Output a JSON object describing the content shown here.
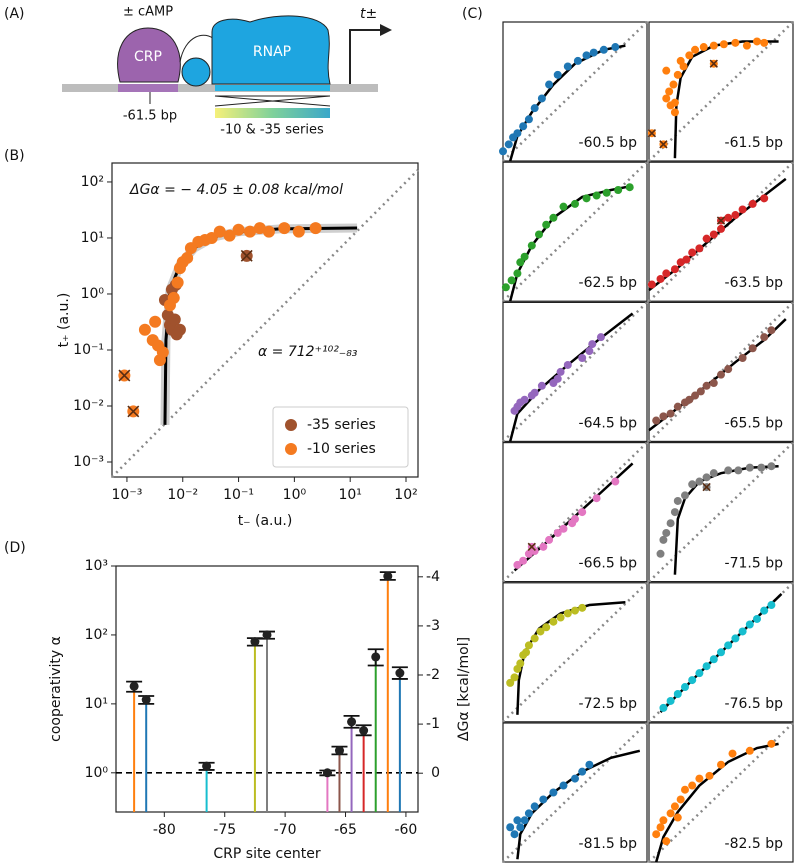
{
  "panel_labels": {
    "a": "(A)",
    "b": "(B)",
    "c": "(C)",
    "d": "(D)"
  },
  "diagram": {
    "camp": "± cAMP",
    "crp": "CRP",
    "rnap": "RNAP",
    "t": "t±",
    "site": "-61.5 bp",
    "series": "-10 & -35 series"
  },
  "chart_data": [
    {
      "type": "scatter",
      "annotations": [
        "ΔGα = − 4.05 ± 0.08 kcal/mol",
        "α = 712⁺¹⁰²₋₈₃"
      ],
      "x_label": "t₋  (a.u.)",
      "y_label": "t₊  (a.u.)",
      "log_x": true,
      "log_y": true,
      "xlim": [
        0.00054,
        164
      ],
      "ylim": [
        0.00054,
        218
      ],
      "xticks": [
        {
          "value": 0.001,
          "label": "10⁻³"
        },
        {
          "value": 0.01,
          "label": "10⁻²"
        },
        {
          "value": 0.1,
          "label": "10⁻¹"
        },
        {
          "value": 1,
          "label": "10⁰"
        },
        {
          "value": 10,
          "label": "10¹"
        },
        {
          "value": 100,
          "label": "10²"
        }
      ],
      "yticks": [
        {
          "value": 0.001,
          "label": "10⁻³"
        },
        {
          "value": 0.01,
          "label": "10⁻²"
        },
        {
          "value": 0.1,
          "label": "10⁻¹"
        },
        {
          "value": 1,
          "label": "10⁰"
        },
        {
          "value": 10,
          "label": "10¹"
        },
        {
          "value": 100,
          "label": "10²"
        }
      ],
      "legend": "lower right",
      "series": [
        {
          "name": "-35 series",
          "color": "#a0522d",
          "x": [
            0.0048,
            0.0054,
            0.0059,
            0.0064,
            0.0072,
            0.0078,
            0.0089,
            0.0064,
            0.0075,
            0.14
          ],
          "values": [
            0.78,
            0.42,
            0.28,
            0.23,
            0.35,
            0.19,
            0.23,
            1.2,
            1.45,
            4.8
          ],
          "excluded": [
            9
          ]
        },
        {
          "name": "-10 series",
          "color": "#f47a20",
          "x": [
            0.0009,
            0.0013,
            0.0021,
            0.0032,
            0.0029,
            0.0036,
            0.0039,
            0.0044,
            0.0059,
            0.0069,
            0.0081,
            0.0089,
            0.01,
            0.012,
            0.014,
            0.019,
            0.025,
            0.033,
            0.046,
            0.069,
            0.1,
            0.16,
            0.24,
            0.35,
            0.66,
            1.2,
            2.4
          ],
          "values": [
            0.035,
            0.008,
            0.23,
            0.32,
            0.15,
            0.12,
            0.066,
            0.091,
            0.63,
            0.85,
            1.6,
            2.9,
            3.7,
            4.4,
            6.6,
            8.5,
            9.2,
            10,
            13,
            11,
            14,
            13,
            15,
            13,
            15,
            13,
            15
          ],
          "excluded": [
            0,
            1
          ]
        }
      ],
      "fit": {
        "color": "#000000",
        "x": [
          0.0048,
          0.005,
          0.0059,
          0.0089,
          0.016,
          0.037,
          0.1,
          0.54,
          13.3
        ],
        "values": [
          0.0046,
          0.15,
          1.17,
          3.3,
          6.6,
          10.5,
          12.9,
          14.5,
          15.1
        ]
      }
    },
    {
      "type": "scatter",
      "annotation": "-60.5 bp",
      "xlim": [
        0,
        1
      ],
      "ylim": [
        0,
        1
      ],
      "color": "#1f77b4",
      "x": [
        0.0,
        0.04,
        0.07,
        0.1,
        0.14,
        0.18,
        0.22,
        0.27,
        0.32,
        0.38,
        0.45,
        0.52,
        0.58,
        0.63,
        0.7,
        0.78
      ],
      "values": [
        0.07,
        0.12,
        0.17,
        0.2,
        0.25,
        0.3,
        0.38,
        0.45,
        0.55,
        0.62,
        0.68,
        0.72,
        0.76,
        0.78,
        0.8,
        0.82
      ],
      "fit": {
        "x": [
          0.05,
          0.1,
          0.2,
          0.35,
          0.5,
          0.7,
          0.85
        ],
        "values": [
          0,
          0.18,
          0.35,
          0.55,
          0.7,
          0.8,
          0.83
        ]
      }
    },
    {
      "type": "scatter",
      "annotation": "-61.5 bp",
      "xlim": [
        0,
        1
      ],
      "ylim": [
        0,
        1
      ],
      "color": "#ff7f0e",
      "x": [
        0.02,
        0.1,
        0.12,
        0.14,
        0.15,
        0.17,
        0.18,
        0.2,
        0.22,
        0.24,
        0.28,
        0.32,
        0.38,
        0.45,
        0.52,
        0.6,
        0.68,
        0.75,
        0.8,
        0.12,
        0.18,
        0.45
      ],
      "values": [
        0.2,
        0.12,
        0.45,
        0.5,
        0.4,
        0.55,
        0.35,
        0.62,
        0.72,
        0.68,
        0.76,
        0.8,
        0.82,
        0.83,
        0.84,
        0.85,
        0.83,
        0.86,
        0.85,
        0.65,
        0.42,
        0.7
      ],
      "excluded": [
        0,
        1,
        21
      ],
      "fit": {
        "x": [
          0.18,
          0.19,
          0.22,
          0.3,
          0.45,
          0.65,
          0.9
        ],
        "values": [
          0.02,
          0.4,
          0.6,
          0.75,
          0.83,
          0.86,
          0.86
        ]
      }
    },
    {
      "type": "scatter",
      "annotation": "-62.5 bp",
      "xlim": [
        0,
        1
      ],
      "ylim": [
        0,
        1
      ],
      "color": "#2ca02c",
      "x": [
        0.02,
        0.06,
        0.1,
        0.12,
        0.15,
        0.2,
        0.25,
        0.3,
        0.35,
        0.42,
        0.5,
        0.58,
        0.65,
        0.72,
        0.8,
        0.88
      ],
      "values": [
        0.1,
        0.15,
        0.2,
        0.28,
        0.32,
        0.4,
        0.48,
        0.55,
        0.6,
        0.68,
        0.7,
        0.74,
        0.76,
        0.78,
        0.8,
        0.82
      ],
      "fit": {
        "x": [
          0.05,
          0.1,
          0.2,
          0.35,
          0.55,
          0.75,
          0.9
        ],
        "values": [
          0,
          0.2,
          0.4,
          0.6,
          0.75,
          0.8,
          0.83
        ]
      }
    },
    {
      "type": "scatter",
      "annotation": "-63.5 bp",
      "xlim": [
        0,
        1
      ],
      "ylim": [
        0,
        1
      ],
      "color": "#d62728",
      "x": [
        0.02,
        0.08,
        0.12,
        0.18,
        0.22,
        0.26,
        0.3,
        0.35,
        0.4,
        0.45,
        0.5,
        0.55,
        0.6,
        0.65,
        0.72,
        0.8,
        0.5
      ],
      "values": [
        0.12,
        0.16,
        0.2,
        0.23,
        0.28,
        0.3,
        0.35,
        0.38,
        0.45,
        0.48,
        0.52,
        0.6,
        0.62,
        0.66,
        0.7,
        0.74,
        0.58
      ],
      "excluded": [
        16
      ],
      "fit": {
        "x": [
          0,
          0.2,
          0.4,
          0.6,
          0.8,
          0.95
        ],
        "values": [
          0.08,
          0.24,
          0.42,
          0.6,
          0.76,
          0.88
        ]
      }
    },
    {
      "type": "scatter",
      "annotation": "-64.5 bp",
      "xlim": [
        0,
        1
      ],
      "ylim": [
        0,
        1
      ],
      "color": "#9467bd",
      "x": [
        0.08,
        0.1,
        0.12,
        0.15,
        0.2,
        0.22,
        0.27,
        0.35,
        0.38,
        0.4,
        0.45,
        0.55,
        0.6,
        0.62,
        0.68
      ],
      "values": [
        0.22,
        0.25,
        0.28,
        0.3,
        0.33,
        0.35,
        0.4,
        0.42,
        0.45,
        0.5,
        0.55,
        0.6,
        0.65,
        0.7,
        0.75
      ],
      "fit": {
        "x": [
          0.05,
          0.1,
          0.25,
          0.45,
          0.65,
          0.9
        ],
        "values": [
          0,
          0.2,
          0.37,
          0.55,
          0.72,
          0.92
        ]
      }
    },
    {
      "type": "scatter",
      "annotation": "-65.5 bp",
      "xlim": [
        0,
        1
      ],
      "ylim": [
        0,
        1
      ],
      "color": "#8c564b",
      "x": [
        0.05,
        0.1,
        0.15,
        0.2,
        0.25,
        0.28,
        0.32,
        0.36,
        0.4,
        0.45,
        0.5,
        0.55,
        0.65,
        0.72,
        0.8,
        0.85
      ],
      "values": [
        0.15,
        0.18,
        0.2,
        0.25,
        0.28,
        0.3,
        0.33,
        0.36,
        0.4,
        0.42,
        0.48,
        0.52,
        0.6,
        0.67,
        0.75,
        0.8
      ],
      "fit": {
        "x": [
          0,
          0.2,
          0.4,
          0.6,
          0.8,
          0.95
        ],
        "values": [
          0.08,
          0.24,
          0.4,
          0.57,
          0.73,
          0.88
        ]
      }
    },
    {
      "type": "scatter",
      "annotation": "-66.5 bp",
      "xlim": [
        0,
        1
      ],
      "ylim": [
        0,
        1
      ],
      "color": "#e377c2",
      "x": [
        0.1,
        0.14,
        0.18,
        0.22,
        0.28,
        0.32,
        0.38,
        0.42,
        0.48,
        0.5,
        0.55,
        0.65,
        0.78,
        0.2
      ],
      "values": [
        0.12,
        0.15,
        0.2,
        0.22,
        0.25,
        0.3,
        0.35,
        0.38,
        0.42,
        0.45,
        0.5,
        0.6,
        0.72,
        0.25
      ],
      "excluded": [
        13
      ],
      "fit": {
        "x": [
          0.08,
          0.3,
          0.5,
          0.7,
          0.9
        ],
        "values": [
          0.08,
          0.28,
          0.47,
          0.66,
          0.85
        ]
      }
    },
    {
      "type": "scatter",
      "annotation": "-71.5 bp",
      "xlim": [
        0,
        1
      ],
      "ylim": [
        0,
        1
      ],
      "color": "#7f7f7f",
      "x": [
        0.08,
        0.1,
        0.12,
        0.15,
        0.18,
        0.2,
        0.25,
        0.3,
        0.35,
        0.4,
        0.45,
        0.55,
        0.62,
        0.7,
        0.78,
        0.85,
        0.4
      ],
      "values": [
        0.2,
        0.3,
        0.35,
        0.42,
        0.5,
        0.58,
        0.62,
        0.7,
        0.72,
        0.75,
        0.78,
        0.8,
        0.8,
        0.82,
        0.82,
        0.83,
        0.68
      ],
      "excluded": [
        16
      ],
      "fit": {
        "x": [
          0.18,
          0.2,
          0.25,
          0.35,
          0.5,
          0.7,
          0.9
        ],
        "values": [
          0.05,
          0.45,
          0.6,
          0.72,
          0.78,
          0.82,
          0.83
        ]
      }
    },
    {
      "type": "scatter",
      "annotation": "-72.5 bp",
      "xlim": [
        0,
        1
      ],
      "ylim": [
        0,
        1
      ],
      "color": "#bcbd22",
      "x": [
        0.05,
        0.08,
        0.1,
        0.12,
        0.14,
        0.16,
        0.18,
        0.22,
        0.26,
        0.3,
        0.35,
        0.4,
        0.45,
        0.5,
        0.55
      ],
      "values": [
        0.28,
        0.32,
        0.38,
        0.42,
        0.48,
        0.5,
        0.55,
        0.6,
        0.65,
        0.68,
        0.72,
        0.75,
        0.78,
        0.8,
        0.82
      ],
      "fit": {
        "x": [
          0.1,
          0.11,
          0.15,
          0.25,
          0.4,
          0.6,
          0.85
        ],
        "values": [
          0.05,
          0.3,
          0.5,
          0.67,
          0.78,
          0.84,
          0.86
        ]
      }
    },
    {
      "type": "scatter",
      "annotation": "-76.5 bp",
      "xlim": [
        0,
        1
      ],
      "ylim": [
        0,
        1
      ],
      "color": "#17becf",
      "x": [
        0.1,
        0.15,
        0.2,
        0.25,
        0.3,
        0.35,
        0.4,
        0.45,
        0.5,
        0.55,
        0.6,
        0.65,
        0.7,
        0.75,
        0.8,
        0.85
      ],
      "values": [
        0.1,
        0.15,
        0.2,
        0.25,
        0.3,
        0.35,
        0.4,
        0.45,
        0.5,
        0.55,
        0.6,
        0.65,
        0.7,
        0.74,
        0.8,
        0.84
      ],
      "fit": {
        "x": [
          0.08,
          0.3,
          0.5,
          0.7,
          0.92
        ],
        "values": [
          0.07,
          0.3,
          0.5,
          0.7,
          0.92
        ]
      }
    },
    {
      "type": "scatter",
      "annotation": "-81.5 bp",
      "xlim": [
        0,
        1
      ],
      "ylim": [
        0,
        1
      ],
      "color": "#1f77b4",
      "x": [
        0.05,
        0.08,
        0.1,
        0.12,
        0.15,
        0.18,
        0.22,
        0.28,
        0.35,
        0.42,
        0.5,
        0.55,
        0.6
      ],
      "values": [
        0.25,
        0.2,
        0.3,
        0.25,
        0.3,
        0.35,
        0.4,
        0.45,
        0.5,
        0.55,
        0.6,
        0.65,
        0.7
      ],
      "fit": {
        "x": [
          0.1,
          0.12,
          0.2,
          0.35,
          0.55,
          0.75,
          0.95
        ],
        "values": [
          0.02,
          0.2,
          0.35,
          0.5,
          0.65,
          0.75,
          0.8
        ]
      }
    },
    {
      "type": "scatter",
      "annotation": "-82.5 bp",
      "xlim": [
        0,
        1
      ],
      "ylim": [
        0,
        1
      ],
      "color": "#ff7f0e",
      "x": [
        0.05,
        0.08,
        0.1,
        0.15,
        0.18,
        0.22,
        0.25,
        0.3,
        0.35,
        0.42,
        0.5,
        0.58,
        0.7,
        0.85,
        0.12,
        0.2
      ],
      "values": [
        0.2,
        0.25,
        0.3,
        0.35,
        0.4,
        0.45,
        0.52,
        0.55,
        0.6,
        0.62,
        0.7,
        0.78,
        0.8,
        0.85,
        0.15,
        0.32
      ],
      "fit": {
        "x": [
          0.05,
          0.1,
          0.2,
          0.35,
          0.55,
          0.75,
          0.9
        ],
        "values": [
          0,
          0.18,
          0.36,
          0.55,
          0.72,
          0.82,
          0.85
        ]
      }
    },
    {
      "type": "lollipop",
      "x_label": "CRP site center",
      "y_label": "cooperativity  α",
      "y2_label": "ΔGα  [kcal/mol]",
      "log_y": true,
      "xlim": [
        -84,
        -59
      ],
      "ylim": [
        0.27,
        1000
      ],
      "y2lim": [
        0.79,
        -4.22
      ],
      "xticks": [
        -80,
        -75,
        -70,
        -65,
        -60
      ],
      "yticks": [
        {
          "value": 1,
          "label": "10⁰"
        },
        {
          "value": 10,
          "label": "10¹"
        },
        {
          "value": 100,
          "label": "10²"
        },
        {
          "value": 1000,
          "label": "10³"
        }
      ],
      "y2ticks": [
        0,
        -1,
        -2,
        -3,
        -4
      ],
      "baseline": 1,
      "x": [
        -82.5,
        -81.5,
        -76.5,
        -72.5,
        -71.5,
        -66.5,
        -65.5,
        -64.5,
        -63.5,
        -62.5,
        -61.5,
        -60.5
      ],
      "values": [
        18,
        11.5,
        1.25,
        80,
        100,
        1.0,
        2.1,
        5.5,
        4.1,
        48,
        712,
        28
      ],
      "error_minus": [
        3,
        1.5,
        0.15,
        10,
        12,
        0.08,
        0.25,
        1,
        0.6,
        12,
        83,
        5
      ],
      "error_plus": [
        3,
        1.5,
        0.15,
        10,
        12,
        0.08,
        0.3,
        1.2,
        0.8,
        14,
        102,
        6
      ],
      "colors": [
        "#ff7f0e",
        "#1f77b4",
        "#17becf",
        "#bcbd22",
        "#7f7f7f",
        "#e377c2",
        "#8c564b",
        "#9467bd",
        "#d62728",
        "#2ca02c",
        "#ff7f0e",
        "#1f77b4"
      ]
    }
  ]
}
